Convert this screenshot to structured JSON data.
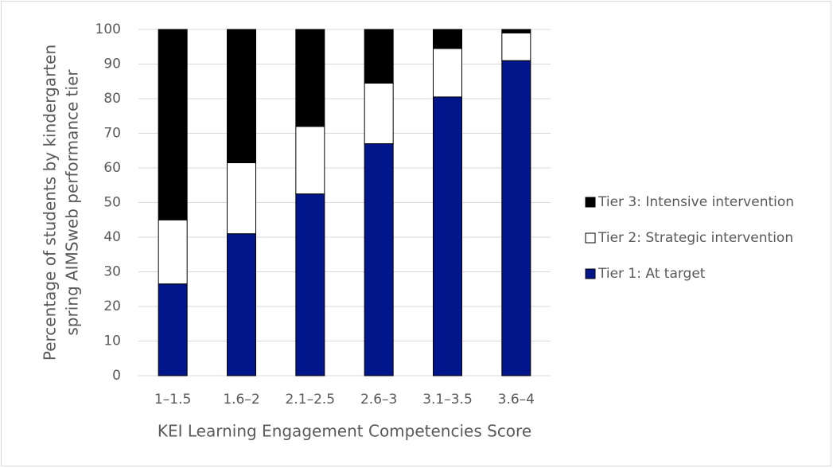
{
  "chart_data": {
    "type": "stacked_bar",
    "x_label": "KEI Learning Engagement Competencies Score",
    "y_label": [
      "Percentage of students by kindergarten",
      "spring AIMSweb performance tier"
    ],
    "categories": [
      "1–1.5",
      "1.6–2",
      "2.1–2.5",
      "2.6–3",
      "3.1–3.5",
      "3.6–4"
    ],
    "series": [
      {
        "name": "Tier 1: At target",
        "color": "#00168a",
        "values": [
          26.5,
          41,
          52.5,
          67,
          80.5,
          91
        ]
      },
      {
        "name": "Tier 2: Strategic intervention",
        "color": "#ffffff",
        "values": [
          18.5,
          20.5,
          19.5,
          17.5,
          14,
          8
        ]
      },
      {
        "name": "Tier 3: Intensive intervention",
        "color": "#000000",
        "values": [
          55,
          38.5,
          28,
          15.5,
          5.5,
          1
        ]
      }
    ],
    "ylim": [
      0,
      100
    ],
    "yticks": [
      0,
      10,
      20,
      30,
      40,
      50,
      60,
      70,
      80,
      90,
      100
    ],
    "grid": true,
    "legend": "right"
  }
}
